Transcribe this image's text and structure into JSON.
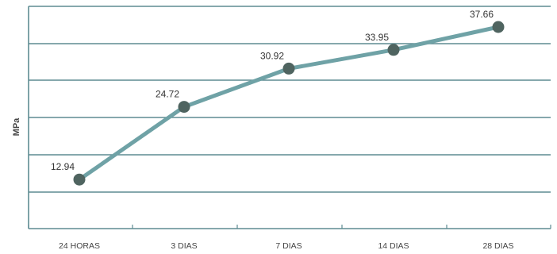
{
  "chart_data": {
    "type": "line",
    "categories": [
      "24 HORAS",
      "3 DIAS",
      "7 DIAS",
      "14 DIAS",
      "28 DIAS"
    ],
    "values": [
      12.94,
      24.72,
      30.92,
      33.95,
      37.66
    ],
    "data_labels": [
      "12.94",
      "24.72",
      "30.92",
      "33.95",
      "37.66"
    ],
    "ylabel": "MPa",
    "xlabel": "",
    "title": "",
    "ylim": [
      5,
      41
    ],
    "grid": "horizontal",
    "colors": {
      "line": "#6fa2a6",
      "point": "#4f6460",
      "grid": "#5e8c92"
    }
  }
}
